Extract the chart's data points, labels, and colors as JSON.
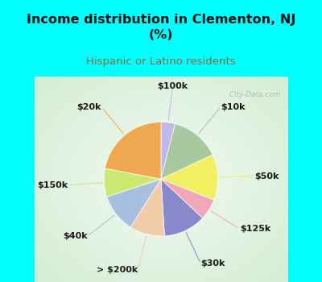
{
  "title": "Income distribution in Clementon, NJ\n(%)",
  "subtitle": "Hispanic or Latino residents",
  "title_color": "#111111",
  "subtitle_color": "#996633",
  "bg_cyan": "#00ffff",
  "bg_chart": "#e8f5ee",
  "labels": [
    "$100k",
    "$10k",
    "$50k",
    "$125k",
    "$30k",
    "> $200k",
    "$40k",
    "$150k",
    "$20k"
  ],
  "values": [
    4,
    14,
    13,
    6,
    12,
    10,
    11,
    8,
    22
  ],
  "colors": [
    "#c0b8e8",
    "#a8c8a0",
    "#f0f060",
    "#f0a8b8",
    "#8888cc",
    "#f0cca8",
    "#a8c0e0",
    "#cce870",
    "#f0a850"
  ],
  "startangle": 90,
  "label_fontsize": 8,
  "watermark": "   City-Data.com"
}
